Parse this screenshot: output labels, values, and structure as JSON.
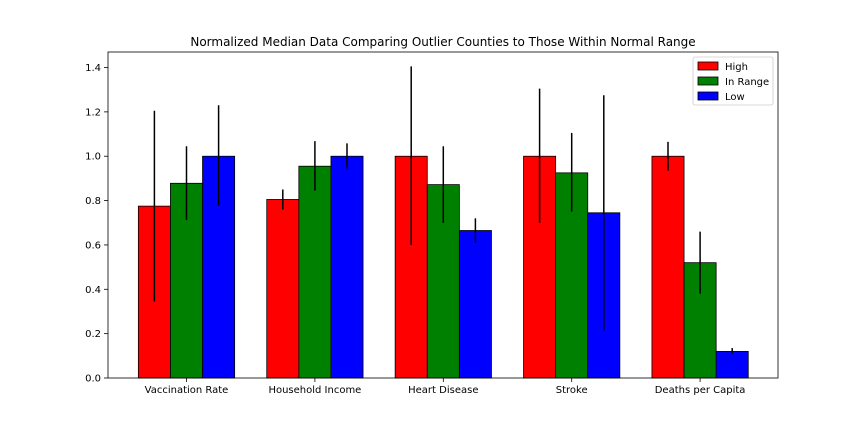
{
  "chart_data": {
    "type": "bar",
    "title": "Normalized Median Data Comparing Outlier Counties to Those Within Normal Range",
    "xlabel": "",
    "ylabel": "",
    "ylim": [
      0,
      1.47
    ],
    "yticks": [
      "0.0",
      "0.2",
      "0.4",
      "0.6",
      "0.8",
      "1.0",
      "1.2",
      "1.4"
    ],
    "ytick_values": [
      0,
      0.2,
      0.4,
      0.6,
      0.8,
      1.0,
      1.2,
      1.4
    ],
    "categories": [
      "Vaccination Rate",
      "Household Income",
      "Heart Disease",
      "Stroke",
      "Deaths per Capita"
    ],
    "series": [
      {
        "name": "High",
        "color": "#ff0000",
        "values": [
          0.775,
          0.805,
          1.0,
          1.0,
          1.0
        ],
        "err_low": [
          0.345,
          0.76,
          0.6,
          0.7,
          0.935
        ],
        "err_high": [
          1.205,
          0.85,
          1.405,
          1.305,
          1.065
        ]
      },
      {
        "name": "In Range",
        "color": "#008000",
        "values": [
          0.878,
          0.955,
          0.872,
          0.925,
          0.52
        ],
        "err_low": [
          0.712,
          0.845,
          0.7,
          0.75,
          0.38
        ],
        "err_high": [
          1.045,
          1.068,
          1.045,
          1.105,
          0.66
        ]
      },
      {
        "name": "Low",
        "color": "#0000ff",
        "values": [
          1.0,
          1.0,
          0.665,
          0.745,
          0.12
        ],
        "err_low": [
          0.775,
          0.945,
          0.61,
          0.215,
          0.11
        ],
        "err_high": [
          1.23,
          1.058,
          0.72,
          1.275,
          0.135
        ]
      }
    ],
    "legend_position": "top-right",
    "grid": false
  }
}
